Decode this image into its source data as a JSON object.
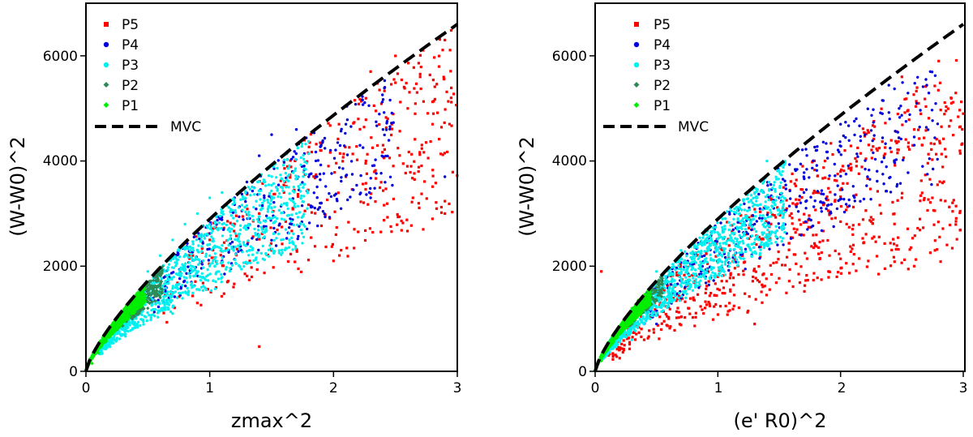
{
  "chart_data": [
    {
      "type": "scatter",
      "xlabel": "zmax^2",
      "ylabel": "(W-W0)^2",
      "xlim": [
        0,
        3
      ],
      "ylim": [
        0,
        7000
      ],
      "xticks": [
        0,
        1,
        2,
        3
      ],
      "yticks": [
        0,
        2000,
        4000,
        6000
      ],
      "xtick_labels": [
        "0",
        "1",
        "2",
        "3"
      ],
      "ytick_labels": [
        "0",
        "2000",
        "4000",
        "6000"
      ],
      "legend_position": "top-left",
      "grid": false,
      "series": [
        {
          "name": "P5",
          "color": "#ff0000",
          "marker": "square",
          "sample_points": [
            [
              2.3,
              5700
            ],
            [
              2.5,
              6000
            ],
            [
              2.7,
              5600
            ],
            [
              2.9,
              6300
            ],
            [
              2.95,
              5200
            ],
            [
              2.6,
              5000
            ],
            [
              2.2,
              4800
            ],
            [
              1.9,
              4200
            ],
            [
              2.4,
              4300
            ],
            [
              2.8,
              4700
            ],
            [
              2.1,
              3700
            ],
            [
              1.6,
              3400
            ],
            [
              1.4,
              3000
            ],
            [
              1.2,
              2800
            ],
            [
              1.0,
              2500
            ],
            [
              2.0,
              2100
            ],
            [
              1.5,
              2300
            ],
            [
              2.9,
              3000
            ],
            [
              0.9,
              1300
            ],
            [
              1.4,
              470
            ]
          ]
        },
        {
          "name": "P4",
          "color": "#0000dd",
          "marker": "circle",
          "sample_points": [
            [
              1.5,
              4500
            ],
            [
              1.7,
              4600
            ],
            [
              1.9,
              4300
            ],
            [
              1.6,
              4000
            ],
            [
              1.4,
              4100
            ],
            [
              2.1,
              4700
            ],
            [
              2.4,
              4600
            ],
            [
              1.8,
              3700
            ],
            [
              1.3,
              3600
            ],
            [
              1.9,
              3200
            ],
            [
              2.3,
              3300
            ],
            [
              1.2,
              3300
            ],
            [
              2.9,
              3700
            ],
            [
              1.1,
              2100
            ]
          ]
        },
        {
          "name": "P3",
          "color": "#00f0f0",
          "marker": "circle",
          "sample_points": [
            [
              0.5,
              1900
            ],
            [
              0.6,
              2200
            ],
            [
              0.7,
              2500
            ],
            [
              0.8,
              2800
            ],
            [
              0.9,
              3000
            ],
            [
              1.0,
              3300
            ],
            [
              1.1,
              3400
            ],
            [
              1.2,
              3200
            ],
            [
              1.3,
              2700
            ],
            [
              1.5,
              3100
            ],
            [
              1.7,
              3000
            ],
            [
              0.4,
              1400
            ],
            [
              0.6,
              1500
            ],
            [
              0.8,
              2000
            ],
            [
              1.0,
              2200
            ],
            [
              0.7,
              1100
            ]
          ]
        },
        {
          "name": "P2",
          "color": "#2e8b57",
          "marker": "diamond",
          "sample_points": [
            [
              0.5,
              1700
            ],
            [
              0.55,
              1600
            ],
            [
              0.45,
              1500
            ],
            [
              0.4,
              1300
            ],
            [
              0.5,
              1200
            ],
            [
              0.35,
              1100
            ],
            [
              0.6,
              1400
            ]
          ]
        },
        {
          "name": "P1",
          "color": "#00ee00",
          "marker": "diamond",
          "sample_points": [
            [
              0.05,
              150
            ],
            [
              0.1,
              350
            ],
            [
              0.15,
              550
            ],
            [
              0.2,
              700
            ],
            [
              0.25,
              850
            ],
            [
              0.3,
              1000
            ],
            [
              0.35,
              1150
            ],
            [
              0.4,
              1250
            ],
            [
              0.45,
              1350
            ]
          ]
        },
        {
          "name": "MVC",
          "color": "#000000",
          "style": "dashed",
          "curve": "(W-W0)^2 = 6600 * (x/3)^0.75, x from 0 to 3"
        }
      ]
    },
    {
      "type": "scatter",
      "xlabel": "(e' R0)^2",
      "ylabel": "(W-W0)^2",
      "xlim": [
        0,
        3
      ],
      "ylim": [
        0,
        7000
      ],
      "xticks": [
        0,
        1,
        2,
        3
      ],
      "yticks": [
        0,
        2000,
        4000,
        6000
      ],
      "xtick_labels": [
        "0",
        "1",
        "2",
        "3"
      ],
      "ytick_labels": [
        "0",
        "2000",
        "4000",
        "6000"
      ],
      "legend_position": "top-left",
      "grid": false,
      "series": [
        {
          "name": "P5",
          "color": "#ff0000",
          "marker": "square",
          "sample_points": [
            [
              2.5,
              5600
            ],
            [
              2.8,
              5900
            ],
            [
              2.9,
              5200
            ],
            [
              3.0,
              4900
            ],
            [
              2.6,
              4600
            ],
            [
              2.3,
              4200
            ],
            [
              2.0,
              3800
            ],
            [
              1.8,
              3400
            ],
            [
              1.6,
              3000
            ],
            [
              1.4,
              2600
            ],
            [
              1.2,
              2200
            ],
            [
              1.0,
              1800
            ],
            [
              0.8,
              1400
            ],
            [
              0.6,
              1000
            ],
            [
              0.4,
              600
            ],
            [
              0.2,
              250
            ],
            [
              2.5,
              3300
            ],
            [
              2.1,
              2600
            ],
            [
              1.3,
              900
            ],
            [
              0.05,
              1900
            ],
            [
              2.6,
              2000
            ]
          ]
        },
        {
          "name": "P4",
          "color": "#0000dd",
          "marker": "circle",
          "sample_points": [
            [
              1.8,
              4200
            ],
            [
              2.0,
              4700
            ],
            [
              2.2,
              4500
            ],
            [
              2.4,
              4800
            ],
            [
              2.6,
              4300
            ],
            [
              1.7,
              3700
            ],
            [
              1.5,
              3300
            ],
            [
              1.3,
              2800
            ],
            [
              1.1,
              2300
            ],
            [
              0.9,
              1800
            ],
            [
              0.7,
              1400
            ],
            [
              0.5,
              900
            ]
          ]
        },
        {
          "name": "P3",
          "color": "#00f0f0",
          "marker": "circle",
          "sample_points": [
            [
              0.5,
              1900
            ],
            [
              0.7,
              2300
            ],
            [
              0.9,
              2700
            ],
            [
              1.1,
              3100
            ],
            [
              1.3,
              3400
            ],
            [
              1.5,
              3800
            ],
            [
              1.4,
              4000
            ],
            [
              1.2,
              2800
            ],
            [
              1.0,
              2200
            ],
            [
              0.8,
              1700
            ],
            [
              0.6,
              1300
            ],
            [
              0.4,
              900
            ],
            [
              0.3,
              600
            ]
          ]
        },
        {
          "name": "P2",
          "color": "#2e8b57",
          "marker": "diamond",
          "sample_points": [
            [
              0.45,
              1500
            ],
            [
              0.5,
              1600
            ],
            [
              0.4,
              1300
            ],
            [
              0.35,
              1100
            ],
            [
              0.3,
              900
            ]
          ]
        },
        {
          "name": "P1",
          "color": "#00ee00",
          "marker": "diamond",
          "sample_points": [
            [
              0.05,
              200
            ],
            [
              0.1,
              400
            ],
            [
              0.15,
              600
            ],
            [
              0.2,
              800
            ],
            [
              0.25,
              1000
            ],
            [
              0.3,
              1200
            ],
            [
              0.35,
              1350
            ],
            [
              0.4,
              1450
            ]
          ]
        },
        {
          "name": "MVC",
          "color": "#000000",
          "style": "dashed",
          "curve": "(W-W0)^2 = 6600 * (x/3)^0.75, x from 0 to 3"
        }
      ]
    }
  ]
}
